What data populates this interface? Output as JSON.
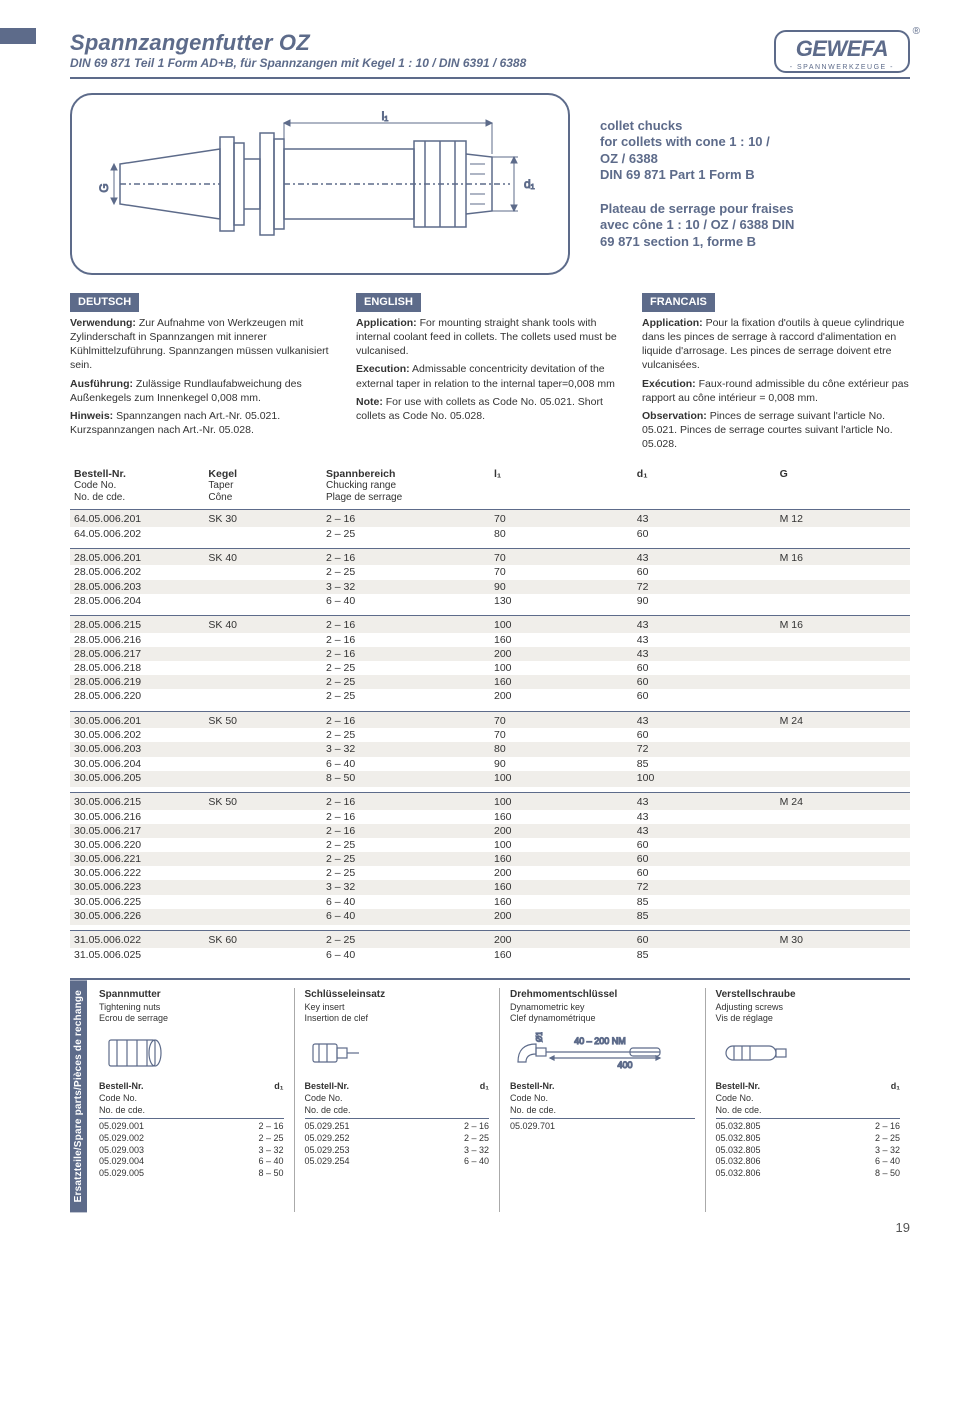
{
  "header": {
    "title": "Spannzangenfutter OZ",
    "subtitle": "DIN 69 871 Teil 1 Form AD+B, für Spannzangen mit Kegel 1 : 10 / DIN 6391 / 6388",
    "logo_text": "GEWEFA",
    "logo_sub": "- SPANNWERKZEUGE -"
  },
  "diagram": {
    "l1": "l₁",
    "d1": "d₁",
    "g": "G"
  },
  "side_text": {
    "block1": "collet chucks\nfor collets with cone 1 : 10 /\nOZ / 6388\nDIN 69 871 Part 1 Form B",
    "block2": "Plateau de serrage pour fraises\navec cône 1 : 10 / OZ / 6388 DIN\n69 871 section 1, forme B"
  },
  "lang": {
    "de": {
      "head": "DEUTSCH",
      "p1_label": "Verwendung:",
      "p1": "Zur Aufnahme von Werkzeugen mit Zylinderschaft in Spannzangen mit innerer Kühlmittelzuführung. Spannzangen müssen vulkanisiert sein.",
      "p2_label": "Ausführung:",
      "p2": "Zulässige Rundlaufabweichung des Außenkegels zum Innenkegel 0,008 mm.",
      "p3_label": "Hinweis:",
      "p3": "Spannzangen nach Art.-Nr. 05.021. Kurzspannzangen nach Art.-Nr. 05.028."
    },
    "en": {
      "head": "ENGLISH",
      "p1_label": "Application:",
      "p1": "For mounting straight shank tools with internal coolant feed in collets. The collets used must be vulcanised.",
      "p2_label": "Execution:",
      "p2": "Admissable concentricity devitation of the external taper in relation to the internal taper=0,008 mm",
      "p3_label": "Note:",
      "p3": "For use with collets as Code No. 05.021. Short collets as Code No. 05.028."
    },
    "fr": {
      "head": "FRANCAIS",
      "p1_label": "Application:",
      "p1": "Pour la fixation d'outils à queue cylindrique dans les pinces de serrage à raccord d'alimentation en liquide d'arrosage. Les pinces de serrage doivent etre vulcanisées.",
      "p2_label": "Exécution:",
      "p2": "Faux-round admissible du cône extérieur pas rapport au cône intérieur = 0,008 mm.",
      "p3_label": "Observation:",
      "p3": "Pinces de serrage suivant l'article No. 05.021. Pinces de serrage courtes suivant l'article No. 05.028."
    }
  },
  "table_headers": {
    "code": {
      "main": "Bestell-Nr.",
      "s1": "Code No.",
      "s2": "No. de cde."
    },
    "taper": {
      "main": "Kegel",
      "s1": "Taper",
      "s2": "Cône"
    },
    "range": {
      "main": "Spannbereich",
      "s1": "Chucking range",
      "s2": "Plage de serrage"
    },
    "l1": "l₁",
    "d1": "d₁",
    "g": "G"
  },
  "groups": [
    {
      "rows": [
        [
          "64.05.006.201",
          "SK 30",
          "2 – 16",
          "70",
          "43",
          "M 12"
        ],
        [
          "64.05.006.202",
          "",
          "2 – 25",
          "80",
          "60",
          ""
        ]
      ]
    },
    {
      "rows": [
        [
          "28.05.006.201",
          "SK 40",
          "2 – 16",
          "70",
          "43",
          "M 16"
        ],
        [
          "28.05.006.202",
          "",
          "2 – 25",
          "70",
          "60",
          ""
        ],
        [
          "28.05.006.203",
          "",
          "3 – 32",
          "90",
          "72",
          ""
        ],
        [
          "28.05.006.204",
          "",
          "6 – 40",
          "130",
          "90",
          ""
        ]
      ]
    },
    {
      "rows": [
        [
          "28.05.006.215",
          "SK 40",
          "2 – 16",
          "100",
          "43",
          "M 16"
        ],
        [
          "28.05.006.216",
          "",
          "2 – 16",
          "160",
          "43",
          ""
        ],
        [
          "28.05.006.217",
          "",
          "2 – 16",
          "200",
          "43",
          ""
        ],
        [
          "28.05.006.218",
          "",
          "2 – 25",
          "100",
          "60",
          ""
        ],
        [
          "28.05.006.219",
          "",
          "2 – 25",
          "160",
          "60",
          ""
        ],
        [
          "28.05.006.220",
          "",
          "2 – 25",
          "200",
          "60",
          ""
        ]
      ]
    },
    {
      "rows": [
        [
          "30.05.006.201",
          "SK 50",
          "2 – 16",
          "70",
          "43",
          "M 24"
        ],
        [
          "30.05.006.202",
          "",
          "2 – 25",
          "70",
          "60",
          ""
        ],
        [
          "30.05.006.203",
          "",
          "3 – 32",
          "80",
          "72",
          ""
        ],
        [
          "30.05.006.204",
          "",
          "6 – 40",
          "90",
          "85",
          ""
        ],
        [
          "30.05.006.205",
          "",
          "8 – 50",
          "100",
          "100",
          ""
        ]
      ]
    },
    {
      "rows": [
        [
          "30.05.006.215",
          "SK 50",
          "2 – 16",
          "100",
          "43",
          "M 24"
        ],
        [
          "30.05.006.216",
          "",
          "2 – 16",
          "160",
          "43",
          ""
        ],
        [
          "30.05.006.217",
          "",
          "2 – 16",
          "200",
          "43",
          ""
        ],
        [
          "30.05.006.220",
          "",
          "2 – 25",
          "100",
          "60",
          ""
        ],
        [
          "30.05.006.221",
          "",
          "2 – 25",
          "160",
          "60",
          ""
        ],
        [
          "30.05.006.222",
          "",
          "2 – 25",
          "200",
          "60",
          ""
        ],
        [
          "30.05.006.223",
          "",
          "3 – 32",
          "160",
          "72",
          ""
        ],
        [
          "30.05.006.225",
          "",
          "6 – 40",
          "160",
          "85",
          ""
        ],
        [
          "30.05.006.226",
          "",
          "6 – 40",
          "200",
          "85",
          ""
        ]
      ]
    },
    {
      "rows": [
        [
          "31.05.006.022",
          "SK 60",
          "2 – 25",
          "200",
          "60",
          "M 30"
        ],
        [
          "31.05.006.025",
          "",
          "6 – 40",
          "160",
          "85",
          ""
        ]
      ]
    }
  ],
  "spare": {
    "tab": "Ersatzteile/Spare parts/Pièces de rechange",
    "head_code": {
      "main": "Bestell-Nr.",
      "s1": "Code No.",
      "s2": "No. de cde."
    },
    "d1": "d₁",
    "torque_top": "40 – 200 NM",
    "torque_bottom": "400",
    "dia": "Ø16",
    "cols": [
      {
        "h": "Spannmutter",
        "t1": "Tightening nuts",
        "t2": "Ecrou de serrage",
        "items": [
          [
            "05.029.001",
            "2 – 16"
          ],
          [
            "05.029.002",
            "2 – 25"
          ],
          [
            "05.029.003",
            "3 – 32"
          ],
          [
            "05.029.004",
            "6 – 40"
          ],
          [
            "05.029.005",
            "8 – 50"
          ]
        ],
        "has_d1": true
      },
      {
        "h": "Schlüsseleinsatz",
        "t1": "Key insert",
        "t2": "Insertion de clef",
        "items": [
          [
            "05.029.251",
            "2 – 16"
          ],
          [
            "05.029.252",
            "2 – 25"
          ],
          [
            "05.029.253",
            "3 – 32"
          ],
          [
            "05.029.254",
            "6 – 40"
          ]
        ],
        "has_d1": true
      },
      {
        "h": "Drehmomentschlüssel",
        "t1": "Dynamometric key",
        "t2": "Clef dynamométrique",
        "items": [
          [
            "05.029.701",
            ""
          ]
        ],
        "has_d1": false
      },
      {
        "h": "Verstellschraube",
        "t1": "Adjusting screws",
        "t2": "Vis de réglage",
        "items": [
          [
            "05.032.805",
            "2 – 16"
          ],
          [
            "05.032.805",
            "2 – 25"
          ],
          [
            "05.032.805",
            "3 – 32"
          ],
          [
            "05.032.806",
            "6 – 40"
          ],
          [
            "05.032.806",
            "8 – 50"
          ]
        ],
        "has_d1": true
      }
    ]
  },
  "page_number": "19"
}
